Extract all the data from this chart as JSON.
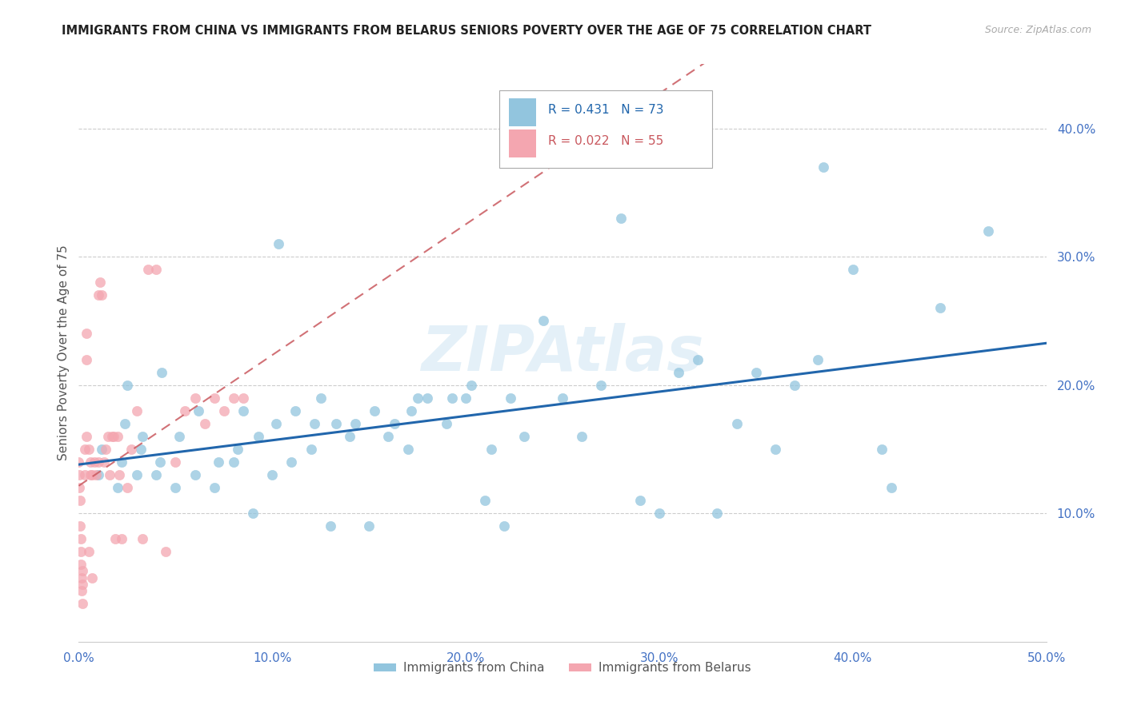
{
  "title": "IMMIGRANTS FROM CHINA VS IMMIGRANTS FROM BELARUS SENIORS POVERTY OVER THE AGE OF 75 CORRELATION CHART",
  "source": "Source: ZipAtlas.com",
  "tick_color": "#4472c4",
  "ylabel": "Seniors Poverty Over the Age of 75",
  "xlim": [
    0.0,
    0.5
  ],
  "ylim": [
    0.0,
    0.45
  ],
  "xticks": [
    0.0,
    0.1,
    0.2,
    0.3,
    0.4,
    0.5
  ],
  "yticks": [
    0.1,
    0.2,
    0.3,
    0.4
  ],
  "ytick_labels": [
    "10.0%",
    "20.0%",
    "30.0%",
    "40.0%"
  ],
  "xtick_labels": [
    "0.0%",
    "10.0%",
    "20.0%",
    "30.0%",
    "40.0%",
    "50.0%"
  ],
  "background_color": "#ffffff",
  "grid_color": "#cccccc",
  "watermark": "ZIPAtlas",
  "legend_R1": "0.431",
  "legend_N1": "73",
  "legend_R2": "0.022",
  "legend_N2": "55",
  "color_china": "#92c5de",
  "color_belarus": "#f4a6b0",
  "trendline_china_color": "#2166ac",
  "trendline_belarus_color": "#c9585e",
  "china_x": [
    0.01,
    0.012,
    0.02,
    0.022,
    0.024,
    0.025,
    0.03,
    0.032,
    0.033,
    0.04,
    0.042,
    0.043,
    0.05,
    0.052,
    0.06,
    0.062,
    0.07,
    0.072,
    0.08,
    0.082,
    0.085,
    0.09,
    0.093,
    0.1,
    0.102,
    0.103,
    0.11,
    0.112,
    0.12,
    0.122,
    0.125,
    0.13,
    0.133,
    0.14,
    0.143,
    0.15,
    0.153,
    0.16,
    0.163,
    0.17,
    0.172,
    0.175,
    0.18,
    0.19,
    0.193,
    0.2,
    0.203,
    0.21,
    0.213,
    0.22,
    0.223,
    0.23,
    0.24,
    0.25,
    0.26,
    0.27,
    0.28,
    0.29,
    0.3,
    0.31,
    0.32,
    0.33,
    0.34,
    0.35,
    0.36,
    0.37,
    0.382,
    0.385,
    0.4,
    0.415,
    0.42,
    0.445,
    0.47
  ],
  "china_y": [
    0.13,
    0.15,
    0.12,
    0.14,
    0.17,
    0.2,
    0.13,
    0.15,
    0.16,
    0.13,
    0.14,
    0.21,
    0.12,
    0.16,
    0.13,
    0.18,
    0.12,
    0.14,
    0.14,
    0.15,
    0.18,
    0.1,
    0.16,
    0.13,
    0.17,
    0.31,
    0.14,
    0.18,
    0.15,
    0.17,
    0.19,
    0.09,
    0.17,
    0.16,
    0.17,
    0.09,
    0.18,
    0.16,
    0.17,
    0.15,
    0.18,
    0.19,
    0.19,
    0.17,
    0.19,
    0.19,
    0.2,
    0.11,
    0.15,
    0.09,
    0.19,
    0.16,
    0.25,
    0.19,
    0.16,
    0.2,
    0.33,
    0.11,
    0.1,
    0.21,
    0.22,
    0.1,
    0.17,
    0.21,
    0.15,
    0.2,
    0.22,
    0.37,
    0.29,
    0.15,
    0.12,
    0.26,
    0.32
  ],
  "belarus_x": [
    0.0,
    0.0002,
    0.0004,
    0.0005,
    0.0007,
    0.0009,
    0.001,
    0.0012,
    0.0014,
    0.0016,
    0.0018,
    0.002,
    0.002,
    0.003,
    0.003,
    0.004,
    0.004,
    0.004,
    0.005,
    0.005,
    0.006,
    0.006,
    0.007,
    0.007,
    0.008,
    0.009,
    0.01,
    0.01,
    0.011,
    0.012,
    0.013,
    0.014,
    0.015,
    0.016,
    0.017,
    0.018,
    0.019,
    0.02,
    0.021,
    0.022,
    0.025,
    0.027,
    0.03,
    0.033,
    0.036,
    0.04,
    0.045,
    0.05,
    0.055,
    0.06,
    0.065,
    0.07,
    0.075,
    0.08,
    0.085
  ],
  "belarus_y": [
    0.14,
    0.13,
    0.12,
    0.11,
    0.09,
    0.08,
    0.07,
    0.06,
    0.05,
    0.04,
    0.03,
    0.055,
    0.045,
    0.15,
    0.13,
    0.24,
    0.22,
    0.16,
    0.15,
    0.07,
    0.14,
    0.13,
    0.13,
    0.05,
    0.14,
    0.13,
    0.14,
    0.27,
    0.28,
    0.27,
    0.14,
    0.15,
    0.16,
    0.13,
    0.16,
    0.16,
    0.08,
    0.16,
    0.13,
    0.08,
    0.12,
    0.15,
    0.18,
    0.08,
    0.29,
    0.29,
    0.07,
    0.14,
    0.18,
    0.19,
    0.17,
    0.19,
    0.18,
    0.19,
    0.19
  ]
}
